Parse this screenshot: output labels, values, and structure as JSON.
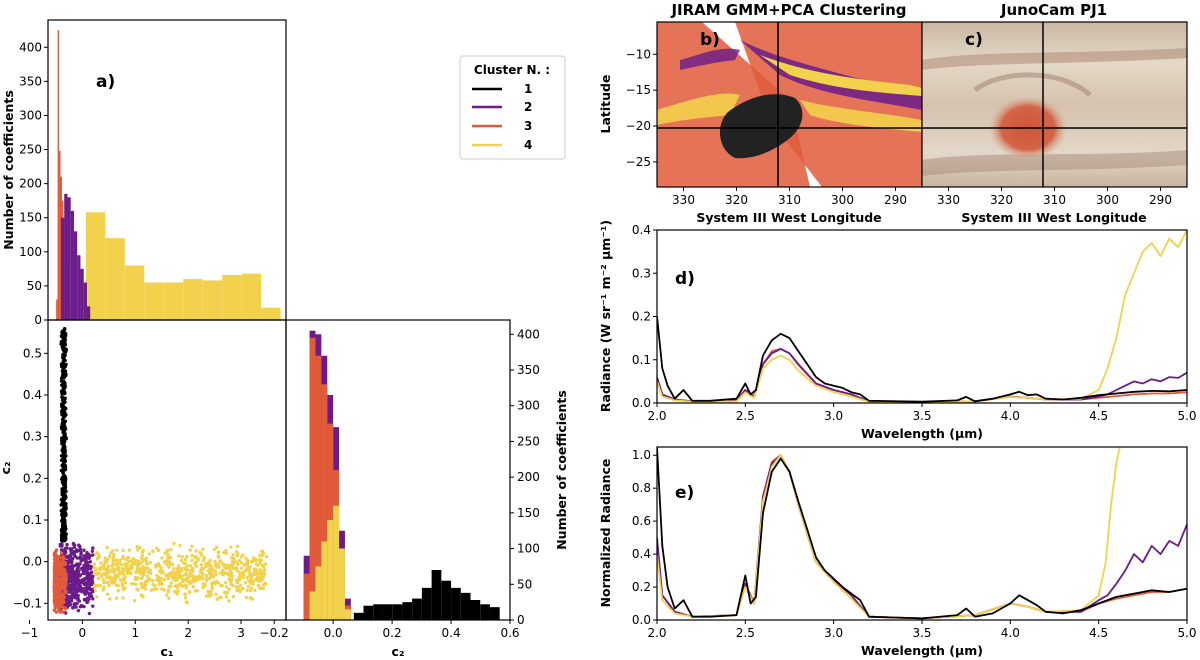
{
  "colors": {
    "c1": "#000000",
    "c2": "#6b1c8a",
    "c3": "#e15a3a",
    "c4": "#f2d24c"
  },
  "legend": {
    "title": "Cluster N. :",
    "items": [
      "1",
      "2",
      "3",
      "4"
    ]
  },
  "chart_data": [
    {
      "id": "a",
      "panel_label": "a)",
      "type": "bar",
      "title": "",
      "xlabel": "",
      "ylabel": "Number of coefficients",
      "ylim": [
        0,
        440
      ],
      "yticks": [
        "0",
        "50",
        "100",
        "150",
        "200",
        "250",
        "300",
        "350",
        "400"
      ],
      "xlim": [
        -0.6,
        3.8
      ],
      "series": [
        {
          "name": "3",
          "bin_width": 0.027,
          "x": [
            -0.45,
            -0.423,
            -0.396,
            -0.369,
            -0.342,
            -0.315,
            -0.288,
            -0.261,
            -0.234,
            -0.207
          ],
          "values": [
            30,
            425,
            248,
            210,
            175,
            150,
            120,
            80,
            50,
            20
          ]
        },
        {
          "name": "2",
          "bin_width": 0.06,
          "x": [
            -0.36,
            -0.3,
            -0.24,
            -0.18,
            -0.12,
            -0.06,
            0.0,
            0.06,
            0.12
          ],
          "values": [
            150,
            185,
            180,
            160,
            130,
            95,
            75,
            55,
            20
          ]
        },
        {
          "name": "4",
          "bin_width": 0.36,
          "x": [
            0.1,
            0.46,
            0.82,
            1.18,
            1.54,
            1.9,
            2.26,
            2.62,
            2.98,
            3.34
          ],
          "values": [
            158,
            120,
            80,
            55,
            55,
            60,
            58,
            66,
            68,
            18
          ]
        }
      ]
    },
    {
      "id": "scatter",
      "type": "scatter",
      "xlabel": "c₁",
      "ylabel": "c₂",
      "xlim": [
        -0.65,
        3.85
      ],
      "ylim": [
        -0.14,
        0.58
      ],
      "xticks": [
        "−1",
        "0",
        "1",
        "2",
        "3"
      ],
      "yticks": [
        "−0.1",
        "0.0",
        "0.1",
        "0.2",
        "0.3",
        "0.4",
        "0.5"
      ],
      "clusters": [
        {
          "name": "1",
          "x_range": [
            -0.48,
            -0.3
          ],
          "y_range": [
            0.05,
            0.56
          ],
          "count": 480
        },
        {
          "name": "2",
          "x_range": [
            -0.42,
            0.2
          ],
          "y_range": [
            -0.13,
            0.05
          ],
          "count": 600
        },
        {
          "name": "3",
          "x_range": [
            -0.53,
            -0.3
          ],
          "y_range": [
            -0.13,
            0.03
          ],
          "count": 350
        },
        {
          "name": "4",
          "x_range": [
            0.2,
            3.5
          ],
          "y_range": [
            -0.11,
            0.055
          ],
          "count": 700
        }
      ]
    },
    {
      "id": "c2hist",
      "type": "bar",
      "xlabel": "c₂",
      "ylabel": "Number of coefficients",
      "xlim": [
        -0.16,
        0.6
      ],
      "ylim": [
        0,
        420
      ],
      "xticks": [
        "−0.2",
        "0.0",
        "0.2",
        "0.4",
        "0.6"
      ],
      "yticks": [
        "0",
        "50",
        "100",
        "150",
        "200",
        "250",
        "300",
        "350",
        "400"
      ],
      "series": [
        {
          "name": "2",
          "bin_width": 0.02,
          "x": [
            -0.1,
            -0.08,
            -0.06,
            -0.04,
            -0.02,
            0.0,
            0.02,
            0.04
          ],
          "values": [
            90,
            405,
            400,
            370,
            315,
            270,
            125,
            30
          ]
        },
        {
          "name": "3",
          "bin_width": 0.02,
          "x": [
            -0.1,
            -0.08,
            -0.06,
            -0.04,
            -0.02,
            0.0,
            0.02,
            0.04
          ],
          "values": [
            65,
            395,
            370,
            330,
            275,
            210,
            100,
            20
          ]
        },
        {
          "name": "4",
          "bin_width": 0.02,
          "x": [
            -0.08,
            -0.06,
            -0.04,
            -0.02,
            0.0,
            0.02,
            0.04
          ],
          "values": [
            40,
            75,
            110,
            140,
            160,
            100,
            15
          ]
        },
        {
          "name": "1",
          "bin_width": 0.033,
          "x": [
            0.07,
            0.103,
            0.136,
            0.169,
            0.202,
            0.235,
            0.268,
            0.301,
            0.334,
            0.367,
            0.4,
            0.433,
            0.466,
            0.499,
            0.532
          ],
          "values": [
            10,
            20,
            22,
            22,
            22,
            25,
            30,
            45,
            70,
            55,
            45,
            38,
            28,
            22,
            18
          ]
        }
      ]
    },
    {
      "id": "b",
      "panel_label": "b)",
      "type": "map",
      "title": "JIRAM GMM+PCA Clustering",
      "xlabel": "System III West Longitude",
      "ylabel": "Latitude",
      "xticks": [
        "330",
        "320",
        "310",
        "300",
        "290"
      ],
      "yticks": [
        "−10",
        "−15",
        "−20",
        "−25"
      ]
    },
    {
      "id": "c",
      "panel_label": "c)",
      "type": "image",
      "title": "JunoCam PJ1",
      "xlabel": "System III West Longitude",
      "xticks": [
        "330",
        "320",
        "310",
        "300",
        "290"
      ]
    },
    {
      "id": "d",
      "panel_label": "d)",
      "type": "line",
      "xlabel": "Wavelength (μm)",
      "ylabel": "Radiance (W sr⁻¹ m⁻² μm⁻¹)",
      "xlim": [
        2.0,
        5.0
      ],
      "ylim": [
        0,
        0.4
      ],
      "xticks": [
        "2.0",
        "2.5",
        "3.0",
        "3.5",
        "4.0",
        "4.5",
        "5.0"
      ],
      "yticks": [
        "0.0",
        "0.1",
        "0.2",
        "0.3",
        "0.4"
      ],
      "series": [
        {
          "name": "1",
          "x": [
            2.0,
            2.03,
            2.06,
            2.1,
            2.15,
            2.2,
            2.3,
            2.45,
            2.5,
            2.53,
            2.56,
            2.6,
            2.65,
            2.7,
            2.75,
            2.8,
            2.85,
            2.9,
            2.95,
            3.0,
            3.05,
            3.1,
            3.15,
            3.2,
            3.5,
            3.7,
            3.75,
            3.8,
            3.9,
            4.0,
            4.05,
            4.1,
            4.15,
            4.2,
            4.3,
            4.4,
            4.5,
            4.6,
            4.7,
            4.8,
            4.9,
            5.0
          ],
          "values": [
            0.2,
            0.08,
            0.04,
            0.01,
            0.03,
            0.005,
            0.005,
            0.01,
            0.045,
            0.02,
            0.03,
            0.11,
            0.145,
            0.16,
            0.15,
            0.12,
            0.09,
            0.06,
            0.045,
            0.04,
            0.035,
            0.025,
            0.02,
            0.005,
            0.003,
            0.006,
            0.014,
            0.004,
            0.01,
            0.02,
            0.026,
            0.018,
            0.02,
            0.01,
            0.008,
            0.012,
            0.018,
            0.022,
            0.026,
            0.028,
            0.027,
            0.03
          ]
        },
        {
          "name": "2",
          "x": [
            2.0,
            2.03,
            2.1,
            2.2,
            2.45,
            2.5,
            2.55,
            2.6,
            2.65,
            2.7,
            2.75,
            2.8,
            2.9,
            3.0,
            3.1,
            3.2,
            3.5,
            3.8,
            4.0,
            4.1,
            4.2,
            4.4,
            4.5,
            4.55,
            4.6,
            4.65,
            4.7,
            4.75,
            4.8,
            4.85,
            4.9,
            4.95,
            5.0
          ],
          "values": [
            0.06,
            0.02,
            0.008,
            0.004,
            0.006,
            0.03,
            0.015,
            0.09,
            0.115,
            0.125,
            0.115,
            0.09,
            0.045,
            0.03,
            0.02,
            0.004,
            0.002,
            0.004,
            0.015,
            0.012,
            0.008,
            0.008,
            0.015,
            0.02,
            0.03,
            0.04,
            0.05,
            0.045,
            0.055,
            0.05,
            0.06,
            0.058,
            0.07
          ]
        },
        {
          "name": "3",
          "x": [
            2.0,
            2.03,
            2.1,
            2.2,
            2.45,
            2.5,
            2.55,
            2.6,
            2.65,
            2.7,
            2.75,
            2.8,
            2.9,
            3.0,
            3.1,
            3.2,
            3.5,
            3.8,
            4.0,
            4.1,
            4.2,
            4.4,
            4.5,
            4.6,
            4.7,
            4.8,
            4.9,
            5.0
          ],
          "values": [
            0.055,
            0.02,
            0.007,
            0.004,
            0.005,
            0.03,
            0.014,
            0.09,
            0.12,
            0.125,
            0.115,
            0.088,
            0.045,
            0.03,
            0.02,
            0.004,
            0.002,
            0.004,
            0.014,
            0.012,
            0.008,
            0.008,
            0.012,
            0.016,
            0.02,
            0.022,
            0.022,
            0.025
          ]
        },
        {
          "name": "4",
          "x": [
            2.0,
            2.03,
            2.1,
            2.2,
            2.45,
            2.5,
            2.55,
            2.6,
            2.65,
            2.7,
            2.75,
            2.8,
            2.9,
            3.0,
            3.1,
            3.2,
            3.5,
            3.8,
            4.0,
            4.1,
            4.2,
            4.4,
            4.5,
            4.55,
            4.6,
            4.65,
            4.7,
            4.75,
            4.8,
            4.85,
            4.9,
            4.95,
            5.0
          ],
          "values": [
            0.05,
            0.015,
            0.006,
            0.003,
            0.004,
            0.025,
            0.012,
            0.08,
            0.1,
            0.11,
            0.1,
            0.075,
            0.04,
            0.025,
            0.015,
            0.003,
            0.002,
            0.004,
            0.014,
            0.012,
            0.008,
            0.01,
            0.03,
            0.08,
            0.15,
            0.25,
            0.3,
            0.35,
            0.37,
            0.34,
            0.38,
            0.36,
            0.4
          ]
        }
      ]
    },
    {
      "id": "e",
      "panel_label": "e)",
      "type": "line",
      "xlabel": "Wavelength (μm)",
      "ylabel": "Normalized Radiance",
      "xlim": [
        2.0,
        5.0
      ],
      "ylim": [
        0,
        1.05
      ],
      "xticks": [
        "2.0",
        "2.5",
        "3.0",
        "3.5",
        "4.0",
        "4.5",
        "5.0"
      ],
      "yticks": [
        "0.0",
        "0.2",
        "0.4",
        "0.6",
        "0.8",
        "1.0"
      ],
      "series": [
        {
          "name": "1",
          "x": [
            2.0,
            2.03,
            2.06,
            2.1,
            2.15,
            2.2,
            2.3,
            2.45,
            2.5,
            2.53,
            2.56,
            2.6,
            2.65,
            2.7,
            2.75,
            2.8,
            2.85,
            2.9,
            2.95,
            3.0,
            3.05,
            3.1,
            3.15,
            3.2,
            3.5,
            3.7,
            3.75,
            3.8,
            3.9,
            4.0,
            4.05,
            4.1,
            4.15,
            4.2,
            4.3,
            4.4,
            4.5,
            4.6,
            4.7,
            4.8,
            4.9,
            5.0
          ],
          "values": [
            1.05,
            0.45,
            0.2,
            0.07,
            0.12,
            0.02,
            0.02,
            0.03,
            0.27,
            0.1,
            0.14,
            0.65,
            0.9,
            0.98,
            0.9,
            0.72,
            0.55,
            0.38,
            0.3,
            0.25,
            0.2,
            0.16,
            0.12,
            0.02,
            0.01,
            0.03,
            0.07,
            0.02,
            0.04,
            0.1,
            0.15,
            0.12,
            0.09,
            0.05,
            0.04,
            0.06,
            0.1,
            0.14,
            0.16,
            0.18,
            0.17,
            0.19
          ]
        },
        {
          "name": "2",
          "x": [
            2.0,
            2.03,
            2.1,
            2.2,
            2.45,
            2.5,
            2.55,
            2.6,
            2.65,
            2.7,
            2.75,
            2.8,
            2.9,
            3.0,
            3.1,
            3.2,
            3.5,
            3.8,
            4.0,
            4.1,
            4.2,
            4.4,
            4.5,
            4.55,
            4.6,
            4.65,
            4.7,
            4.75,
            4.8,
            4.85,
            4.9,
            4.95,
            5.0
          ],
          "values": [
            0.5,
            0.15,
            0.05,
            0.02,
            0.03,
            0.22,
            0.1,
            0.75,
            0.95,
            1.0,
            0.9,
            0.7,
            0.35,
            0.25,
            0.15,
            0.02,
            0.01,
            0.03,
            0.1,
            0.08,
            0.05,
            0.05,
            0.12,
            0.15,
            0.22,
            0.3,
            0.4,
            0.35,
            0.45,
            0.4,
            0.48,
            0.45,
            0.58
          ]
        },
        {
          "name": "3",
          "x": [
            2.0,
            2.03,
            2.1,
            2.2,
            2.45,
            2.5,
            2.55,
            2.6,
            2.65,
            2.7,
            2.75,
            2.8,
            2.9,
            3.0,
            3.1,
            3.2,
            3.5,
            3.8,
            4.0,
            4.1,
            4.2,
            4.4,
            4.5,
            4.6,
            4.7,
            4.8,
            4.9,
            5.0
          ],
          "values": [
            0.45,
            0.15,
            0.05,
            0.02,
            0.03,
            0.22,
            0.1,
            0.75,
            0.96,
            1.0,
            0.9,
            0.7,
            0.35,
            0.24,
            0.15,
            0.02,
            0.01,
            0.03,
            0.1,
            0.08,
            0.05,
            0.05,
            0.1,
            0.13,
            0.15,
            0.17,
            0.17,
            0.19
          ]
        },
        {
          "name": "4",
          "x": [
            2.0,
            2.03,
            2.1,
            2.2,
            2.45,
            2.5,
            2.55,
            2.6,
            2.65,
            2.7,
            2.75,
            2.8,
            2.9,
            3.0,
            3.1,
            3.2,
            3.5,
            3.8,
            4.0,
            4.1,
            4.2,
            4.4,
            4.5,
            4.54,
            4.57,
            4.6,
            4.62
          ],
          "values": [
            0.4,
            0.12,
            0.04,
            0.02,
            0.03,
            0.2,
            0.1,
            0.72,
            0.93,
            1.0,
            0.9,
            0.7,
            0.35,
            0.23,
            0.13,
            0.02,
            0.01,
            0.03,
            0.1,
            0.08,
            0.05,
            0.06,
            0.15,
            0.35,
            0.7,
            0.95,
            1.05
          ]
        }
      ]
    }
  ]
}
